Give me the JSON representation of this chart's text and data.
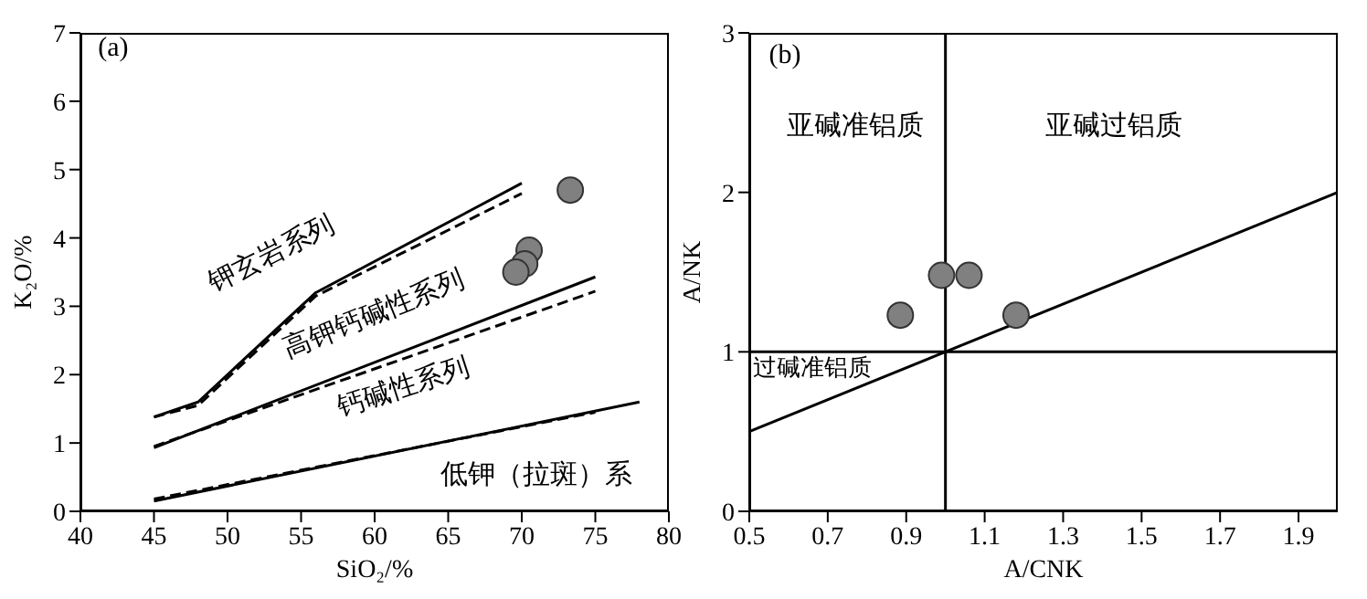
{
  "chart_data": [
    {
      "type": "line",
      "xlabel": "SiO₂/%",
      "ylabel": "K₂O/%",
      "xlim": [
        40,
        80
      ],
      "ylim": [
        0,
        7
      ],
      "xticks": [
        40,
        45,
        50,
        55,
        60,
        65,
        70,
        75,
        80
      ],
      "yticks": [
        0,
        1,
        2,
        3,
        4,
        5,
        6,
        7
      ],
      "annotations": [
        "(a)",
        "钾玄岩系列",
        "高钾钙碱性系列",
        "钙碱性系列",
        "低钾（拉斑）系"
      ],
      "series": [
        {
          "color": "#000000",
          "line_style": "solid",
          "x": [
            45,
            48,
            56,
            70
          ],
          "values": [
            1.38,
            1.6,
            3.2,
            4.8
          ]
        },
        {
          "color": "#000000",
          "line_style": "dashed",
          "x": [
            45,
            48,
            56,
            70
          ],
          "values": [
            1.38,
            1.55,
            3.15,
            4.65
          ]
        },
        {
          "color": "#000000",
          "line_style": "solid",
          "x": [
            45,
            75
          ],
          "values": [
            0.93,
            3.43
          ]
        },
        {
          "color": "#000000",
          "line_style": "dashed",
          "x": [
            45,
            75
          ],
          "values": [
            0.95,
            3.22
          ]
        },
        {
          "color": "#000000",
          "line_style": "solid",
          "x": [
            45,
            78
          ],
          "values": [
            0.15,
            1.6
          ]
        },
        {
          "color": "#000000",
          "line_style": "dashed",
          "x": [
            45,
            75
          ],
          "values": [
            0.18,
            1.45
          ]
        },
        {
          "type": "scatter",
          "color": "#808080",
          "marker": "circle",
          "x": [
            73.3,
            70.5,
            70.2,
            69.6
          ],
          "values": [
            4.7,
            3.82,
            3.62,
            3.5
          ]
        }
      ]
    },
    {
      "type": "scatter",
      "xlabel": "A/CNK",
      "ylabel": "A/NK",
      "xlim": [
        0.5,
        2.0
      ],
      "ylim": [
        0,
        3
      ],
      "xticks": [
        0.5,
        0.7,
        0.9,
        1.1,
        1.3,
        1.5,
        1.7,
        1.9
      ],
      "yticks": [
        0,
        1,
        2,
        3
      ],
      "annotations": [
        "(b)",
        "亚碱准铝质",
        "亚碱过铝质",
        "过碱准铝质"
      ],
      "series": [
        {
          "type": "line",
          "color": "#000000",
          "line_style": "solid",
          "x": [
            1,
            1
          ],
          "values": [
            0,
            3
          ]
        },
        {
          "type": "line",
          "color": "#000000",
          "line_style": "solid",
          "x": [
            0.5,
            2.0
          ],
          "values": [
            1,
            1
          ]
        },
        {
          "type": "line",
          "color": "#000000",
          "line_style": "solid",
          "x": [
            0.5,
            2.0
          ],
          "values": [
            0.5,
            2.0
          ]
        },
        {
          "color": "#808080",
          "marker": "circle",
          "x": [
            0.885,
            0.99,
            1.06,
            1.18
          ],
          "values": [
            1.23,
            1.48,
            1.48,
            1.23
          ]
        }
      ]
    }
  ]
}
